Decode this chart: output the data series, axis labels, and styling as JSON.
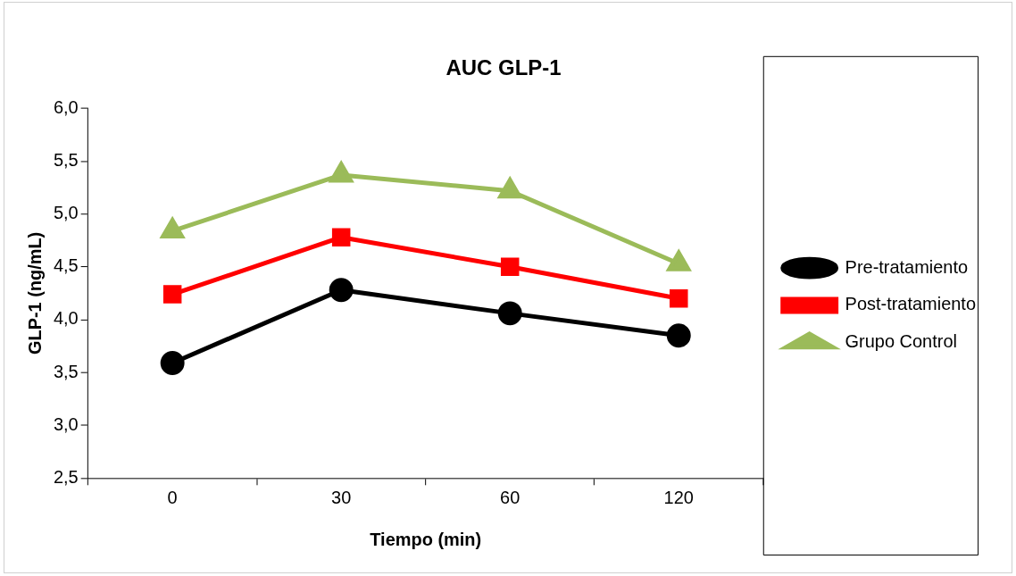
{
  "chart_data": {
    "type": "line",
    "title": "AUC GLP-1",
    "xlabel": "Tiempo (min)",
    "ylabel": "GLP-1 (ng/mL)",
    "categories": [
      "0",
      "30",
      "60",
      "120"
    ],
    "series": [
      {
        "name": "Pre-tratamiento",
        "color": "#000000",
        "marker": "circle",
        "values": [
          3.59,
          4.28,
          4.06,
          3.85
        ]
      },
      {
        "name": "Post-tratamiento",
        "color": "#ff0000",
        "marker": "square",
        "values": [
          4.24,
          4.78,
          4.5,
          4.2
        ]
      },
      {
        "name": "Grupo Control",
        "color": "#9bbb59",
        "marker": "triangle",
        "values": [
          4.84,
          5.37,
          5.22,
          4.53
        ]
      }
    ],
    "ylim": [
      2.5,
      6.0
    ],
    "yticks": [
      {
        "value": 2.5,
        "label": "2,5"
      },
      {
        "value": 3.0,
        "label": "3,0"
      },
      {
        "value": 3.5,
        "label": "3,5"
      },
      {
        "value": 4.0,
        "label": "4,0"
      },
      {
        "value": 4.5,
        "label": "4,5"
      },
      {
        "value": 5.0,
        "label": "5,0"
      },
      {
        "value": 5.5,
        "label": "5,5"
      },
      {
        "value": 6.0,
        "label": "6,0"
      }
    ],
    "grid": false,
    "legend": "right",
    "line_style": "solid"
  }
}
